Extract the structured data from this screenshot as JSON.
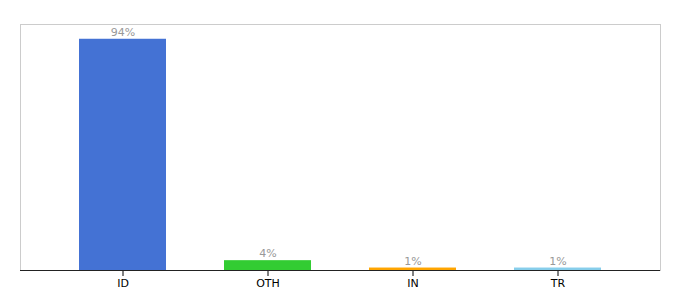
{
  "chart_data": {
    "type": "bar",
    "categories": [
      "ID",
      "OTH",
      "IN",
      "TR"
    ],
    "values": [
      94,
      4,
      1,
      1
    ],
    "value_labels": [
      "94%",
      "4%",
      "1%",
      "1%"
    ],
    "colors": [
      "#4472D4",
      "#33CC33",
      "#FFA500",
      "#87CEEB"
    ],
    "ylim": [
      0,
      100
    ],
    "data_labels": true,
    "tick_labels": "x"
  }
}
